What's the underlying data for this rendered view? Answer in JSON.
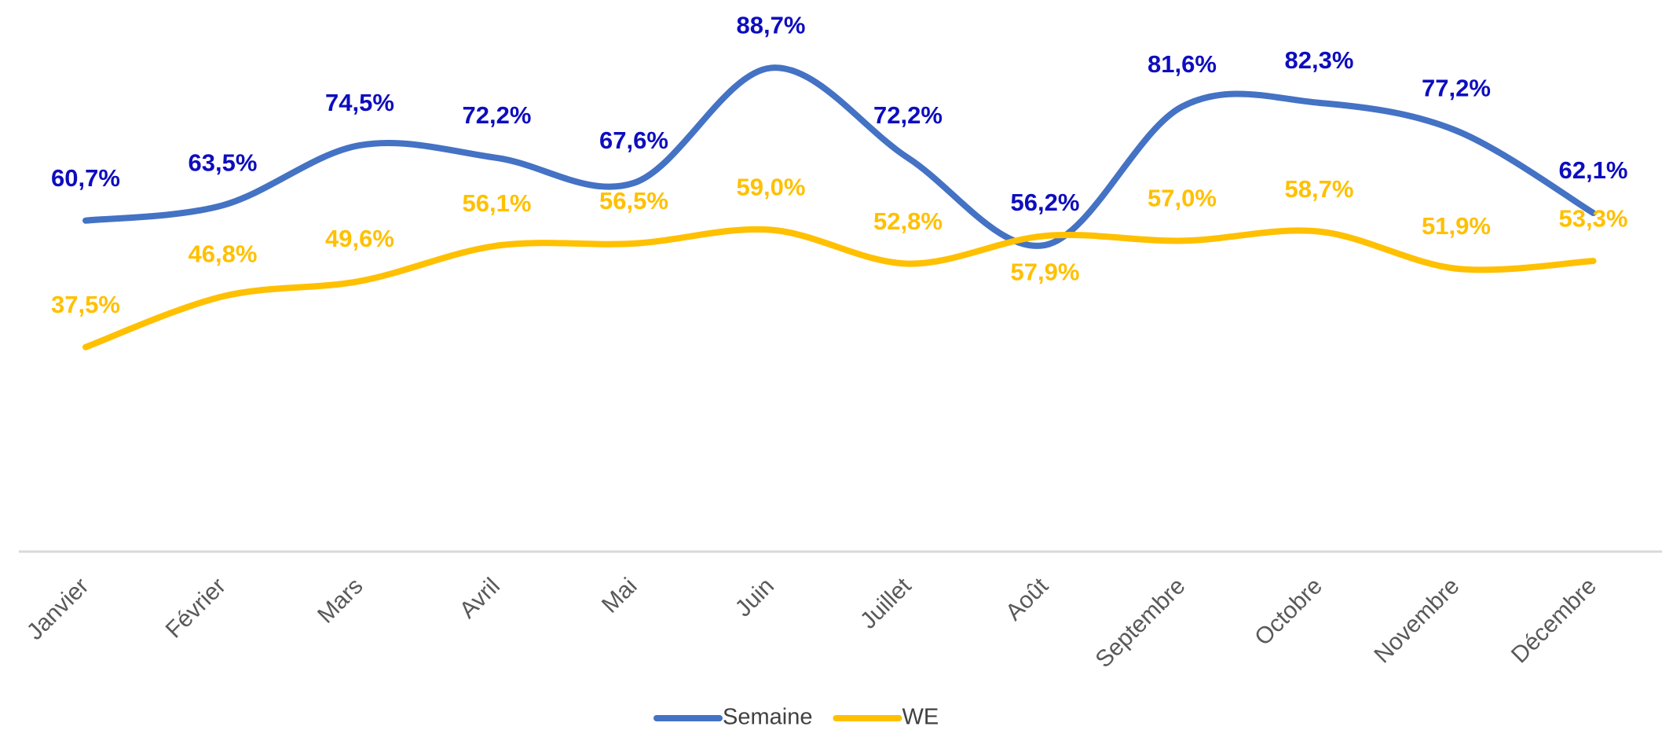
{
  "chart_data": {
    "type": "line",
    "categories": [
      "Janvier",
      "Février",
      "Mars",
      "Avril",
      "Mai",
      "Juin",
      "Juillet",
      "Août",
      "Septembre",
      "Octobre",
      "Novembre",
      "Décembre"
    ],
    "series": [
      {
        "name": "Semaine",
        "color": "#4472c4",
        "label_color": "#0d0dbf",
        "values": [
          60.7,
          63.5,
          74.5,
          72.2,
          67.6,
          88.7,
          72.2,
          56.2,
          81.6,
          82.3,
          77.2,
          62.1
        ],
        "value_labels": [
          "60,7%",
          "63,5%",
          "74,5%",
          "72,2%",
          "67,6%",
          "88,7%",
          "72,2%",
          "56,2%",
          "81,6%",
          "82,3%",
          "77,2%",
          "62,1%"
        ]
      },
      {
        "name": "WE",
        "color": "#ffc000",
        "label_color": "#ffc000",
        "values": [
          37.5,
          46.8,
          49.6,
          56.1,
          56.5,
          59.0,
          52.8,
          57.9,
          57.0,
          58.7,
          51.9,
          53.3
        ],
        "value_labels": [
          "37,5%",
          "46,8%",
          "49,6%",
          "56,1%",
          "56,5%",
          "59,0%",
          "52,8%",
          "57,9%",
          "57,0%",
          "58,7%",
          "51,9%",
          "53,3%"
        ]
      }
    ],
    "ylim": [
      0,
      100
    ],
    "legend": "bottom",
    "smooth": true
  }
}
